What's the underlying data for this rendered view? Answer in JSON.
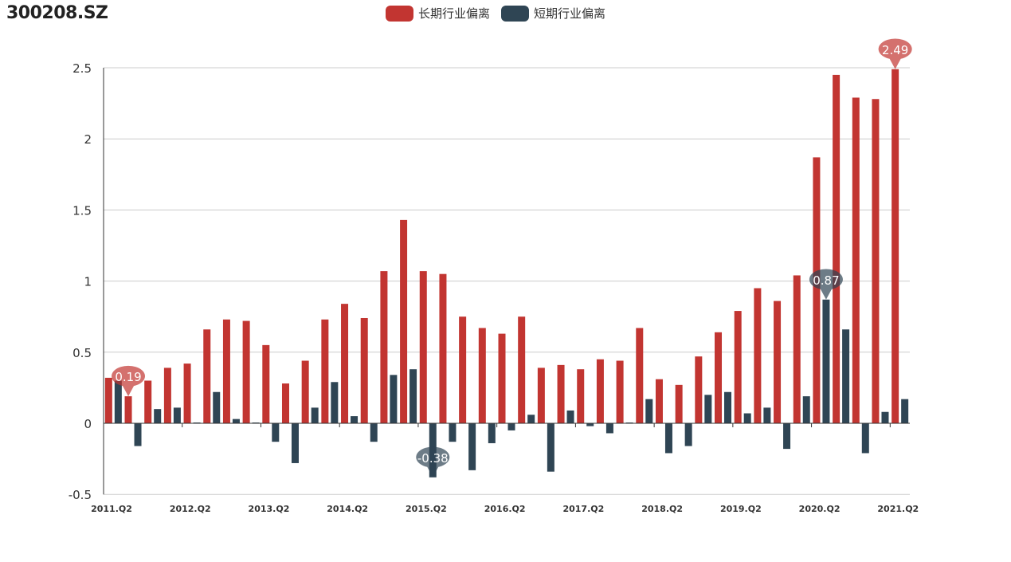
{
  "page": {
    "title": "300208.SZ"
  },
  "colors": {
    "long": "#c23531",
    "short": "#2f4554",
    "grid": "#cccccc",
    "axis": "#333333"
  },
  "chart_data": {
    "type": "bar",
    "title": "300208.SZ",
    "ylim": [
      -0.5,
      2.5
    ],
    "yticks": [
      -0.5,
      0,
      0.5,
      1,
      1.5,
      2,
      2.5
    ],
    "ytick_labels": [
      "-0.5",
      "0",
      "0.5",
      "1",
      "1.5",
      "2",
      "2.5"
    ],
    "xtick_labels": [
      "2011.Q2",
      "2012.Q2",
      "2013.Q2",
      "2014.Q2",
      "2015.Q2",
      "2016.Q2",
      "2017.Q2",
      "2018.Q2",
      "2019.Q2",
      "2020.Q2",
      "2021.Q2"
    ],
    "categories": [
      "2011.Q2",
      "2011.Q3",
      "2011.Q4",
      "2012.Q1",
      "2012.Q2",
      "2012.Q3",
      "2012.Q4",
      "2013.Q1",
      "2013.Q2",
      "2013.Q3",
      "2013.Q4",
      "2014.Q1",
      "2014.Q2",
      "2014.Q3",
      "2014.Q4",
      "2015.Q1",
      "2015.Q2",
      "2015.Q3",
      "2015.Q4",
      "2016.Q1",
      "2016.Q2",
      "2016.Q3",
      "2016.Q4",
      "2017.Q1",
      "2017.Q2",
      "2017.Q3",
      "2017.Q4",
      "2018.Q1",
      "2018.Q2",
      "2018.Q3",
      "2018.Q4",
      "2019.Q1",
      "2019.Q2",
      "2019.Q3",
      "2019.Q4",
      "2020.Q1",
      "2020.Q2",
      "2020.Q3",
      "2020.Q4",
      "2021.Q1",
      "2021.Q2"
    ],
    "legend_position": "top-center",
    "grid": true,
    "series": [
      {
        "name": "长期行业偏离",
        "color": "#c23531",
        "values": [
          0.32,
          0.19,
          0.3,
          0.39,
          0.42,
          0.66,
          0.73,
          0.72,
          0.55,
          0.28,
          0.44,
          0.73,
          0.84,
          0.74,
          1.07,
          1.43,
          1.07,
          1.05,
          0.75,
          0.67,
          0.63,
          0.75,
          0.39,
          0.41,
          0.38,
          0.45,
          0.44,
          0.67,
          0.31,
          0.27,
          0.47,
          0.64,
          0.79,
          0.95,
          0.86,
          1.04,
          1.87,
          2.45,
          2.29,
          2.28,
          2.49
        ]
      },
      {
        "name": "短期行业偏离",
        "color": "#2f4554",
        "values": [
          0.3,
          -0.16,
          0.1,
          0.11,
          0.0,
          0.22,
          0.03,
          0.0,
          -0.13,
          -0.28,
          0.11,
          0.29,
          0.05,
          -0.13,
          0.34,
          0.38,
          -0.38,
          -0.13,
          -0.33,
          -0.14,
          -0.05,
          0.06,
          -0.34,
          0.09,
          -0.02,
          -0.07,
          0.0,
          0.17,
          -0.21,
          -0.16,
          0.2,
          0.22,
          0.07,
          0.11,
          -0.18,
          0.19,
          0.87,
          0.66,
          -0.21,
          0.08,
          0.17
        ]
      }
    ],
    "mark_points": [
      {
        "series": 0,
        "index": 1,
        "label": "0.19"
      },
      {
        "series": 0,
        "index": 40,
        "label": "2.49"
      },
      {
        "series": 1,
        "index": 16,
        "label": "-0.38"
      },
      {
        "series": 1,
        "index": 36,
        "label": "0.87"
      }
    ]
  }
}
